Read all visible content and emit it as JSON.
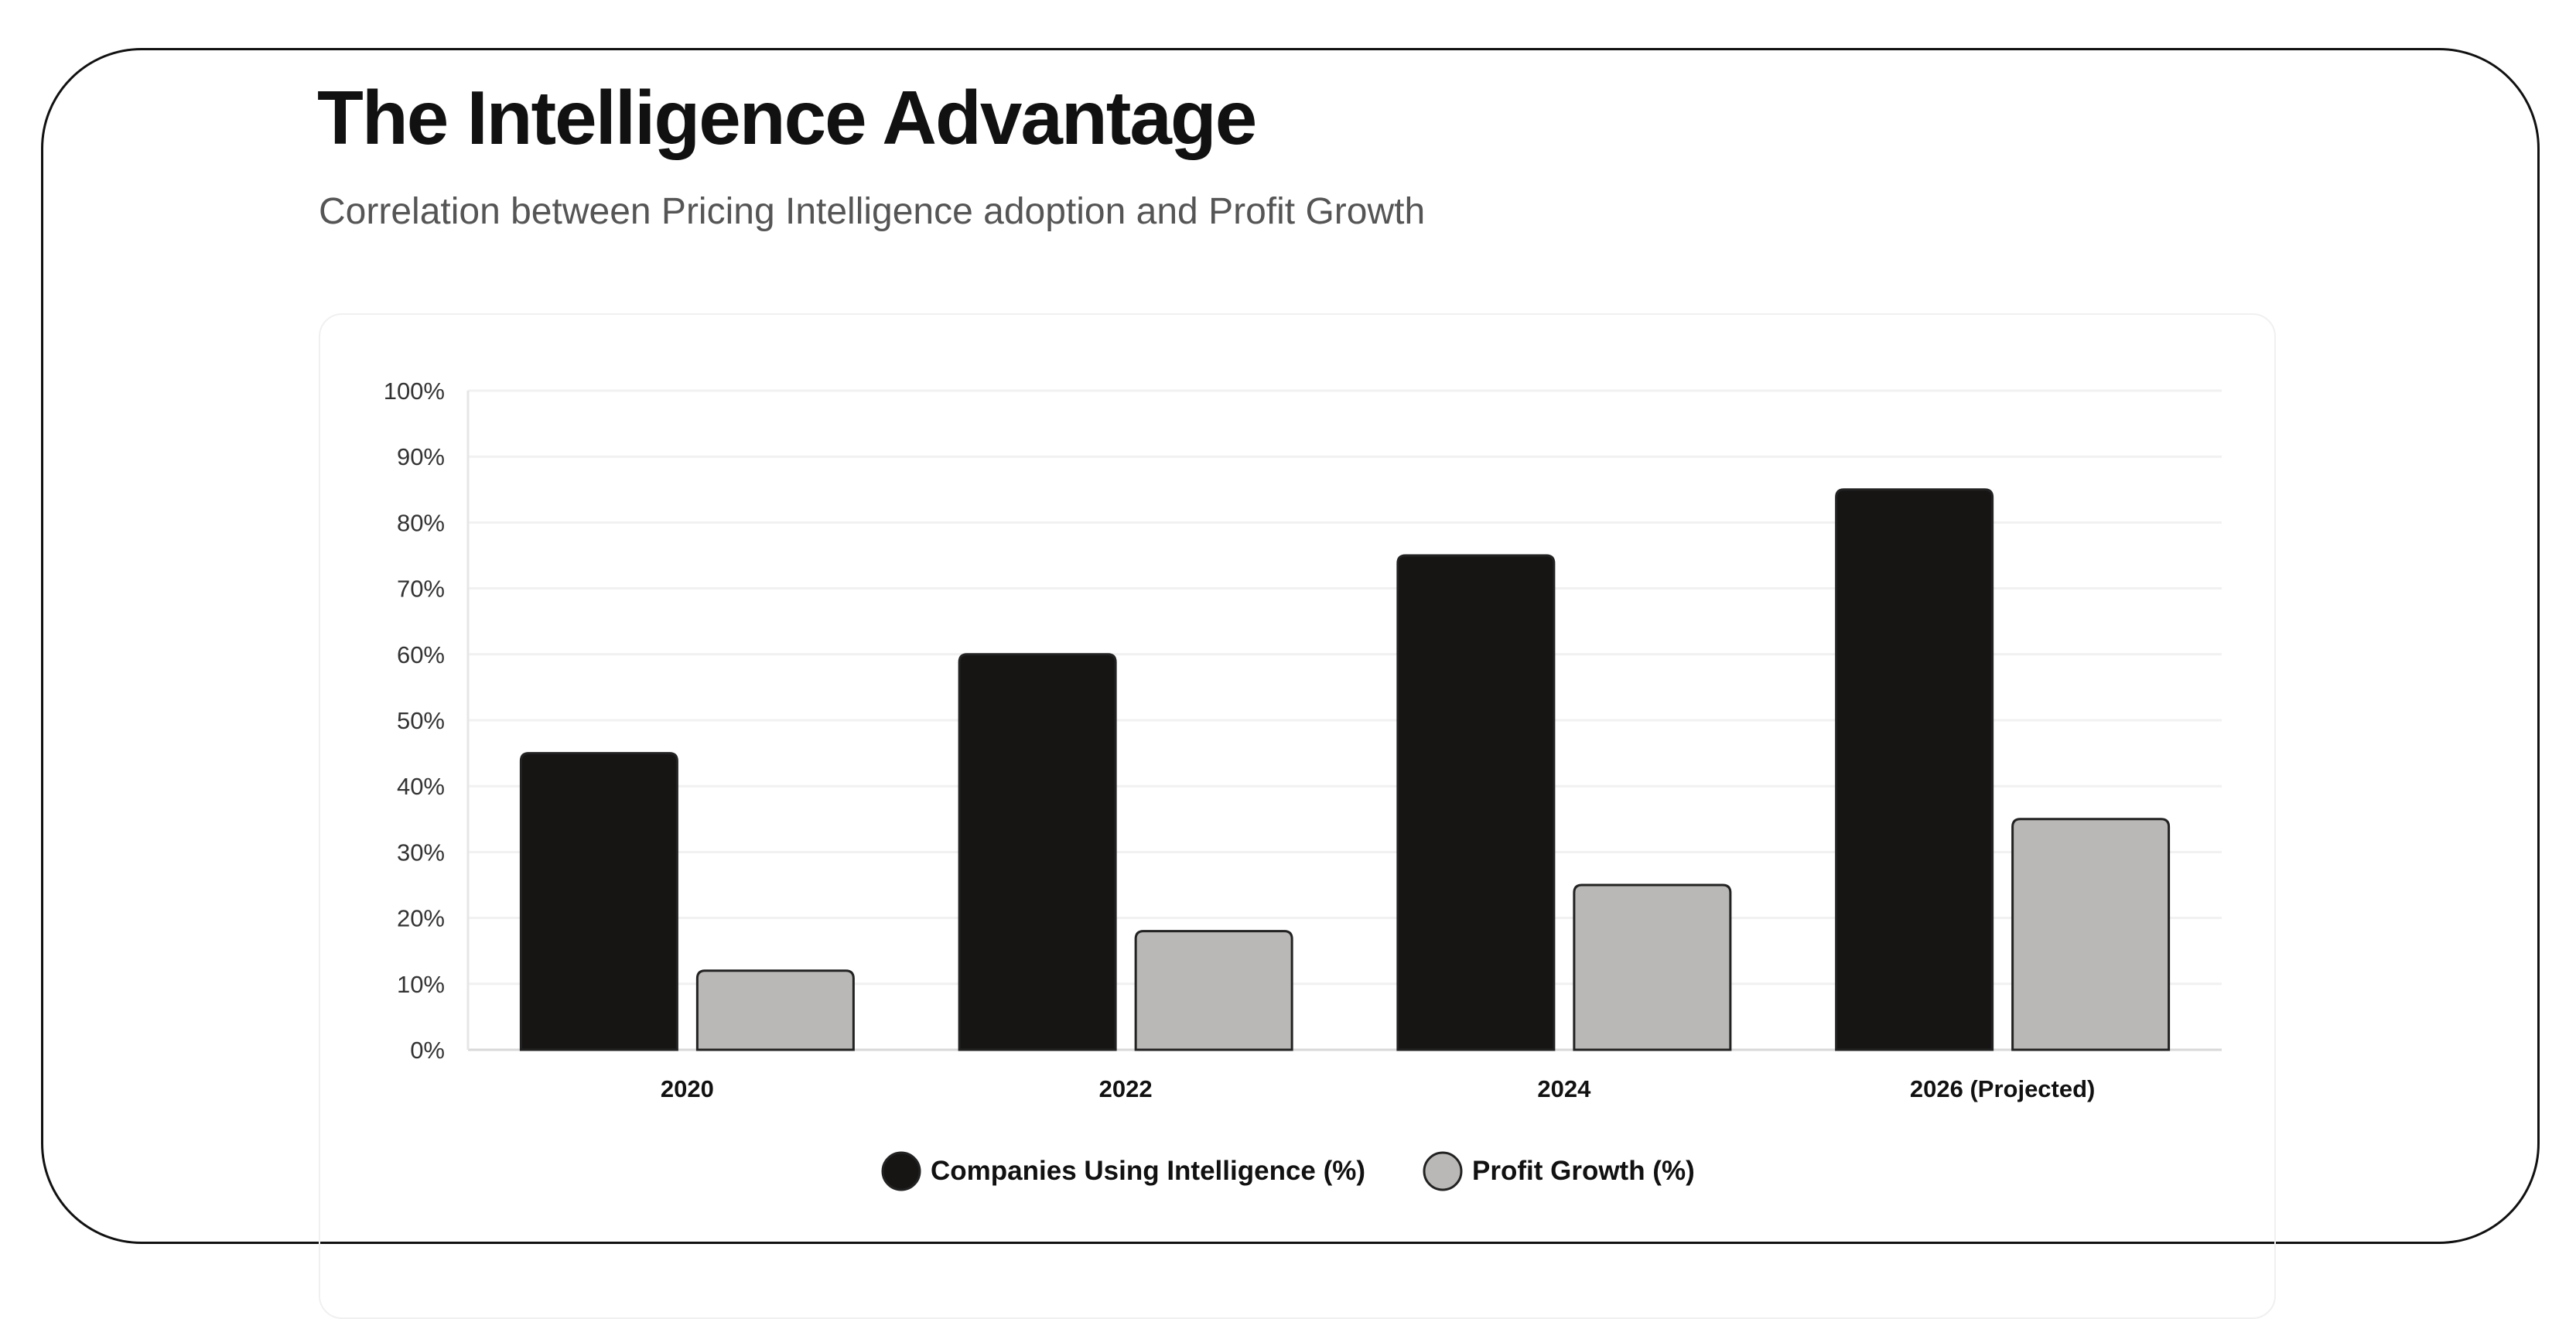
{
  "header": {
    "title": "The Intelligence Advantage",
    "subtitle": "Correlation between Pricing Intelligence adoption and Profit Growth"
  },
  "chart_data": {
    "type": "bar",
    "categories": [
      "2020",
      "2022",
      "2024",
      "2026 (Projected)"
    ],
    "series": [
      {
        "name": "Companies Using Intelligence (%)",
        "values": [
          45,
          60,
          75,
          85
        ],
        "color": "#161514"
      },
      {
        "name": "Profit Growth (%)",
        "values": [
          12,
          18,
          25,
          35
        ],
        "color": "#b9b8b6"
      }
    ],
    "yticks": [
      "0%",
      "10%",
      "20%",
      "30%",
      "40%",
      "50%",
      "60%",
      "70%",
      "80%",
      "90%",
      "100%"
    ],
    "ylim": [
      0,
      100
    ],
    "grid": true,
    "legend": "bottom"
  }
}
